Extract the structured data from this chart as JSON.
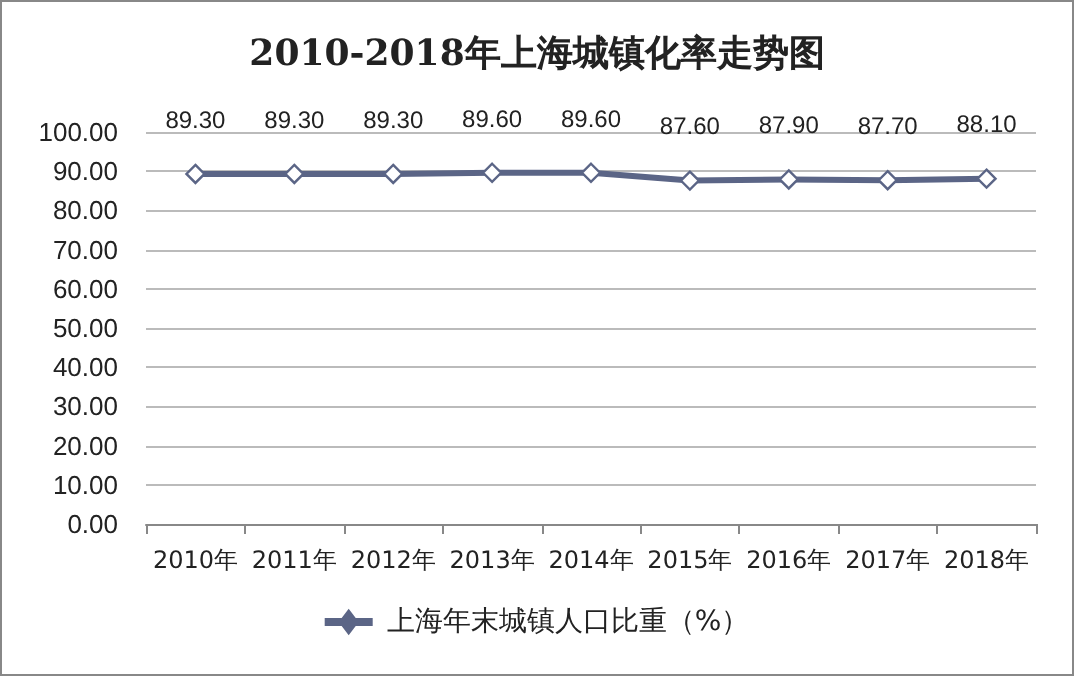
{
  "chart_data": {
    "type": "line",
    "title": "2010-2018年上海城镇化率走势图",
    "categories": [
      "2010年",
      "2011年",
      "2012年",
      "2013年",
      "2014年",
      "2015年",
      "2016年",
      "2017年",
      "2018年"
    ],
    "series": [
      {
        "name": "上海年末城镇人口比重（%）",
        "color": "#5b6586",
        "values": [
          89.3,
          89.3,
          89.3,
          89.6,
          89.6,
          87.6,
          87.9,
          87.7,
          88.1
        ],
        "value_labels": [
          "89.30",
          "89.30",
          "89.30",
          "89.60",
          "89.60",
          "87.60",
          "87.90",
          "87.70",
          "88.10"
        ]
      }
    ],
    "ylim": [
      0,
      100
    ],
    "yticks": [
      {
        "value": 0,
        "label": "0.00"
      },
      {
        "value": 10,
        "label": "10.00"
      },
      {
        "value": 20,
        "label": "20.00"
      },
      {
        "value": 30,
        "label": "30.00"
      },
      {
        "value": 40,
        "label": "40.00"
      },
      {
        "value": 50,
        "label": "50.00"
      },
      {
        "value": 60,
        "label": "60.00"
      },
      {
        "value": 70,
        "label": "70.00"
      },
      {
        "value": 80,
        "label": "80.00"
      },
      {
        "value": 90,
        "label": "90.00"
      },
      {
        "value": 100,
        "label": "100.00"
      }
    ],
    "grid": "y",
    "legend": "bottom",
    "marker": "diamond",
    "line_style": "solid"
  }
}
